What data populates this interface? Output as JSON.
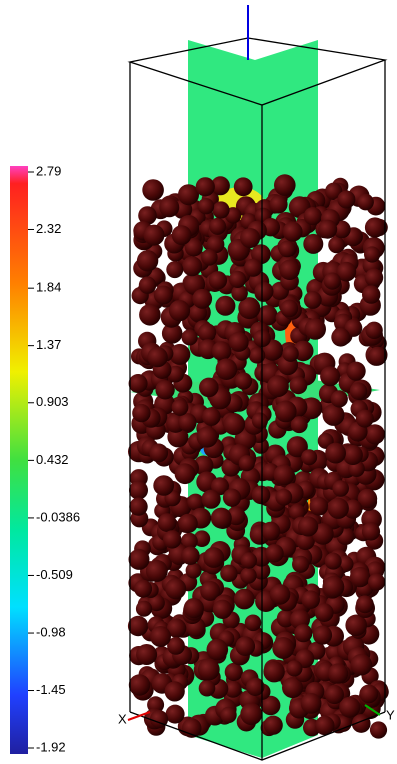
{
  "colorbar": {
    "ticks": [
      2.79,
      2.32,
      1.84,
      1.37,
      0.903,
      0.432,
      -0.0386,
      -0.509,
      -0.98,
      -1.45,
      -1.92
    ]
  },
  "axes": {
    "x": "X",
    "y": "Y"
  }
}
